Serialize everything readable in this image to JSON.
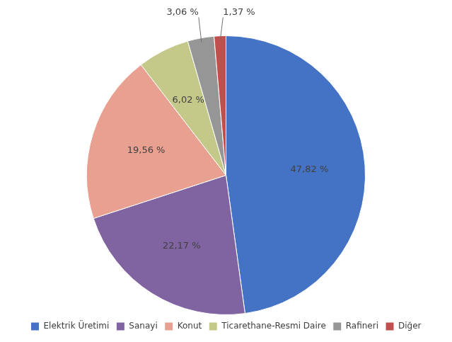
{
  "chart_data": {
    "type": "pie",
    "categories": [
      "Elektrik Üretimi",
      "Sanayi",
      "Konut",
      "Ticarethane-Resmi Daire",
      "Rafineri",
      "Diğer"
    ],
    "values": [
      47.82,
      22.17,
      19.56,
      6.02,
      3.06,
      1.37
    ],
    "value_labels": [
      "47,82 %",
      "22,17 %",
      "19,56 %",
      "6,02 %",
      "3,06 %",
      "1,37 %"
    ],
    "colors": [
      "#4472C4",
      "#8064A2",
      "#E8A090",
      "#C4C98A",
      "#969696",
      "#C0504D"
    ],
    "data_labels": true,
    "legend": "bottom"
  }
}
